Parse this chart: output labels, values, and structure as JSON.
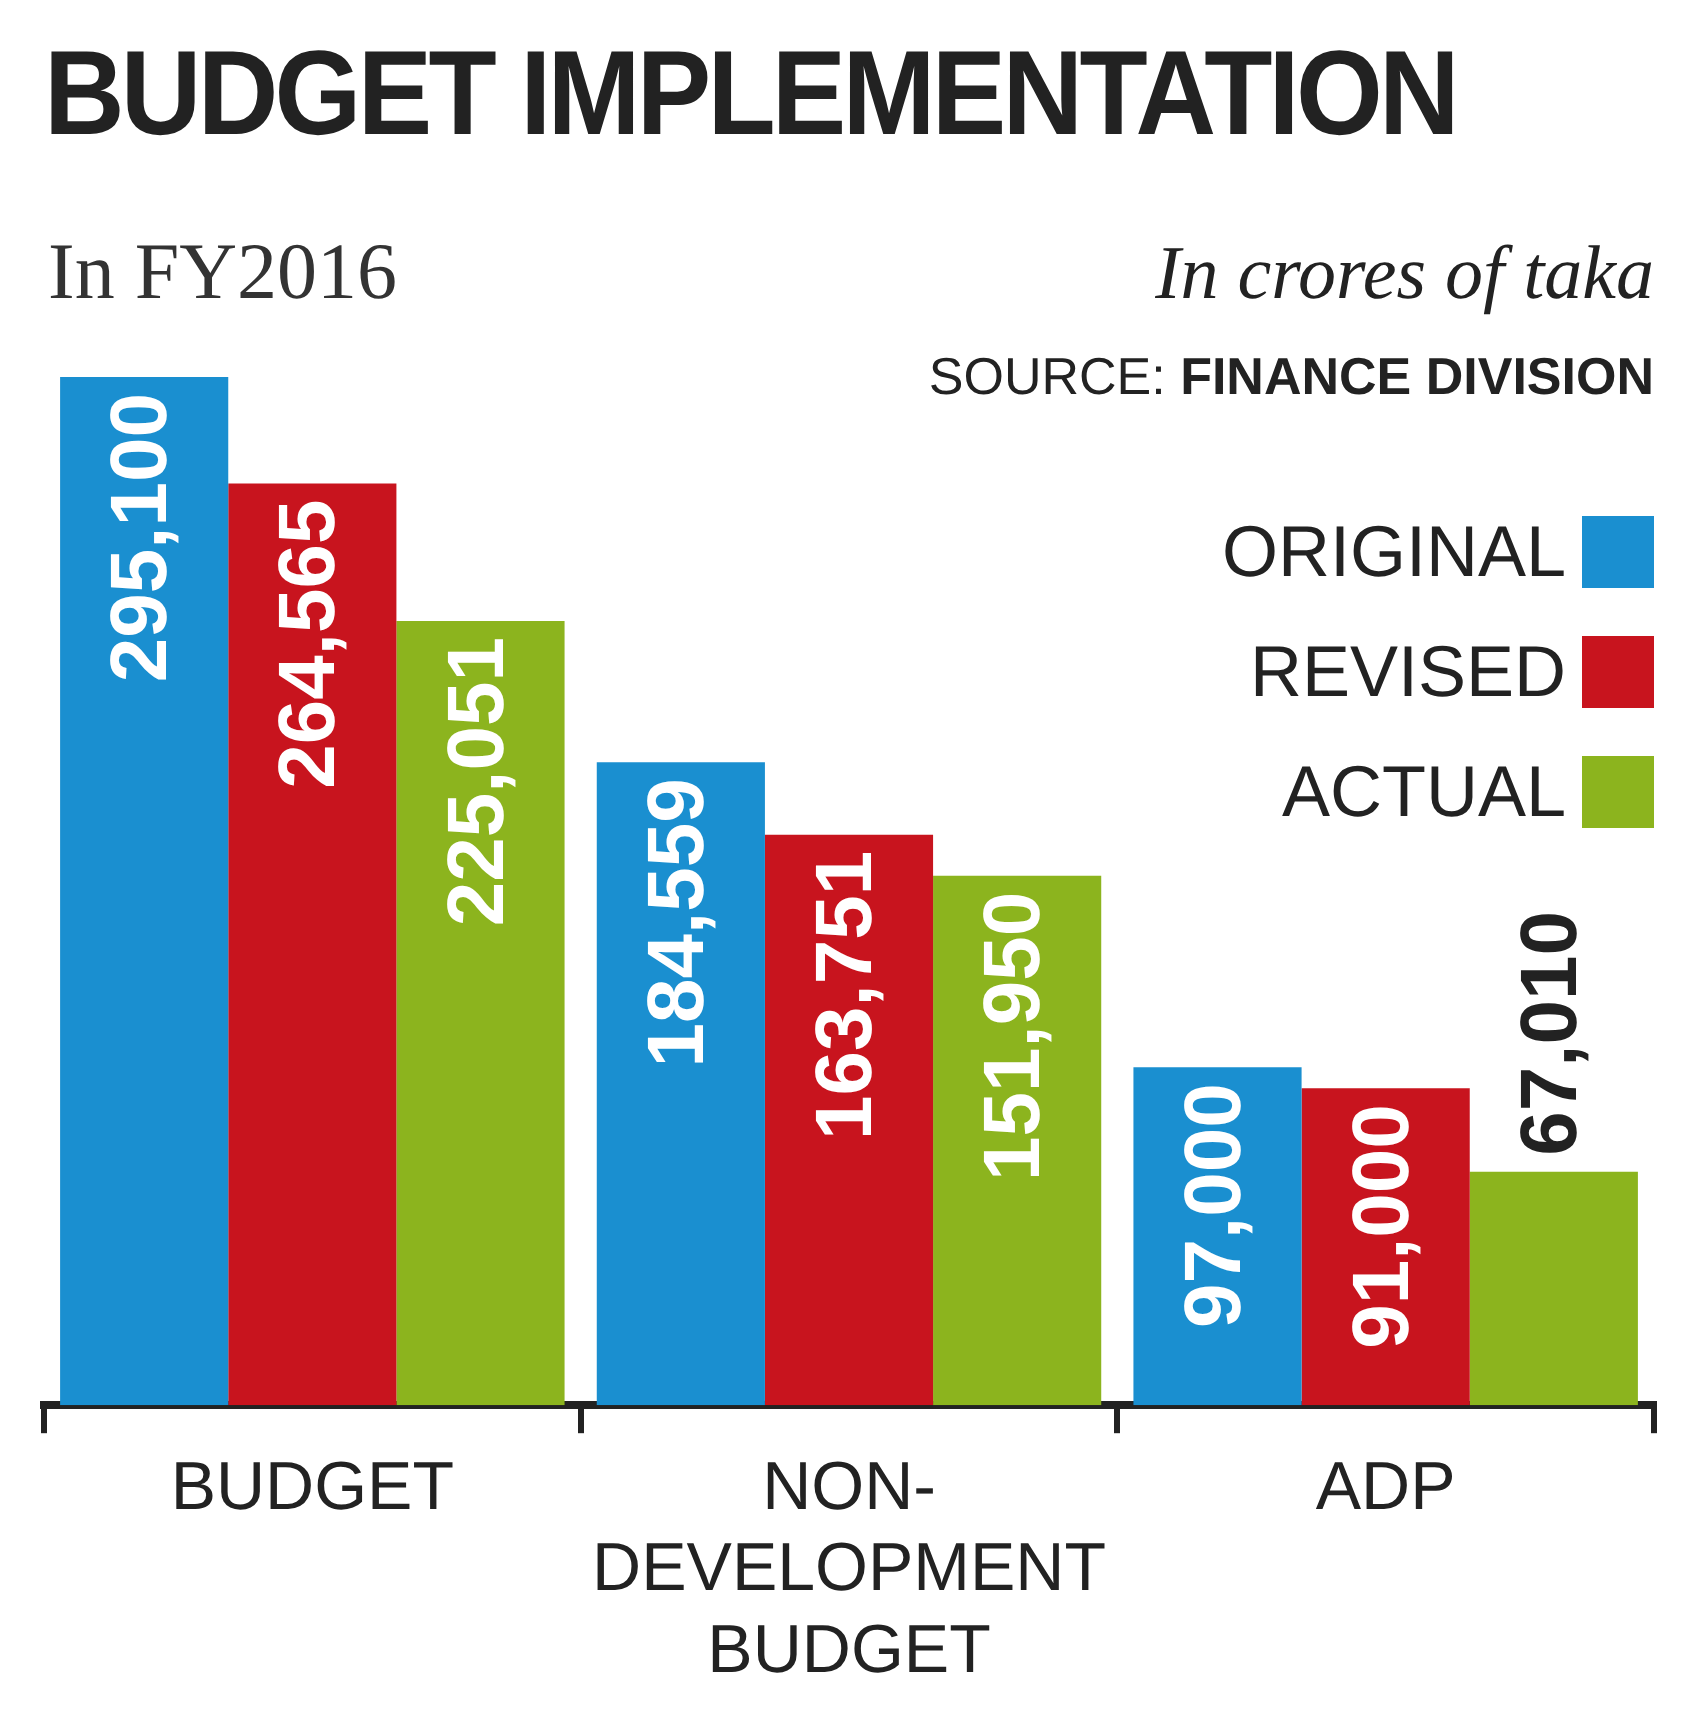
{
  "chart_data": {
    "type": "bar",
    "title": "BUDGET IMPLEMENTATION",
    "subtitle": "In FY2016",
    "annotations": [
      "In crores of taka",
      "SOURCE: FINANCE DIVISION"
    ],
    "categories": [
      "BUDGET",
      "NON-DEVELOPMENT BUDGET",
      "ADP"
    ],
    "series": [
      {
        "name": "ORIGINAL",
        "color": "#1a8fd0",
        "values": [
          295100,
          184559,
          97000
        ],
        "value_labels": [
          "295,100",
          "184,559",
          "97,000"
        ]
      },
      {
        "name": "REVISED",
        "color": "#c8141e",
        "values": [
          264565,
          163751,
          91000
        ],
        "value_labels": [
          "264,565",
          "163,751",
          "91,000"
        ]
      },
      {
        "name": "ACTUAL",
        "color": "#8cb41e",
        "values": [
          225051,
          151950,
          67010
        ],
        "value_labels": [
          "225,051",
          "151,950",
          "67,010"
        ]
      }
    ],
    "legend": "top right",
    "grid": false
  }
}
